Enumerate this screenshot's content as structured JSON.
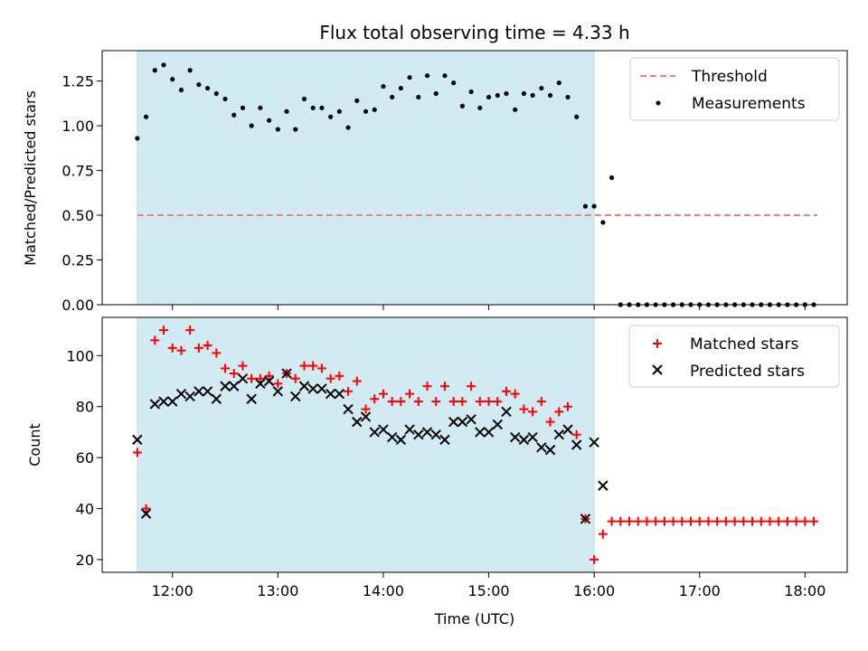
{
  "title": "Flux total observing time = 4.33 h",
  "chart_data": [
    {
      "type": "scatter",
      "ylabel": "Matched/Predicted stars",
      "ylim": [
        0,
        1.42
      ],
      "yticks": [
        "0.00",
        "0.25",
        "0.50",
        "0.75",
        "1.00",
        "1.25"
      ],
      "ytick_values": [
        0,
        0.25,
        0.5,
        0.75,
        1.0,
        1.25
      ],
      "xlim": [
        "11:20",
        "18:24"
      ],
      "x_tick_values": [
        "12:00",
        "13:00",
        "14:00",
        "15:00",
        "16:00",
        "17:00",
        "18:00"
      ],
      "shaded_region": {
        "x_start": "11:40",
        "x_end": "16:00",
        "color": "#add8e6"
      },
      "legend": "top-right",
      "grid": false,
      "series": [
        {
          "name": "Threshold",
          "style": "dashed-line",
          "color": "#f08080",
          "x": [
            "11:40",
            "18:07"
          ],
          "y": [
            0.5,
            0.5
          ]
        },
        {
          "name": "Measurements",
          "style": "dot",
          "color": "#000000",
          "x": [
            "11:40",
            "11:45",
            "11:50",
            "11:55",
            "12:00",
            "12:05",
            "12:10",
            "12:15",
            "12:20",
            "12:25",
            "12:30",
            "12:35",
            "12:40",
            "12:45",
            "12:50",
            "12:55",
            "13:00",
            "13:05",
            "13:10",
            "13:15",
            "13:20",
            "13:25",
            "13:30",
            "13:35",
            "13:40",
            "13:45",
            "13:50",
            "13:55",
            "14:00",
            "14:05",
            "14:10",
            "14:15",
            "14:20",
            "14:25",
            "14:30",
            "14:35",
            "14:40",
            "14:45",
            "14:50",
            "14:55",
            "15:00",
            "15:05",
            "15:10",
            "15:15",
            "15:20",
            "15:25",
            "15:30",
            "15:35",
            "15:40",
            "15:45",
            "15:50",
            "15:55",
            "16:00",
            "16:05",
            "16:10",
            "16:15",
            "16:20",
            "16:25",
            "16:30",
            "16:35",
            "16:40",
            "16:45",
            "16:50",
            "16:55",
            "17:00",
            "17:05",
            "17:10",
            "17:15",
            "17:20",
            "17:25",
            "17:30",
            "17:35",
            "17:40",
            "17:45",
            "17:50",
            "17:55",
            "18:00",
            "18:05"
          ],
          "y": [
            0.93,
            1.05,
            1.31,
            1.34,
            1.26,
            1.2,
            1.31,
            1.23,
            1.21,
            1.18,
            1.15,
            1.06,
            1.1,
            1.0,
            1.1,
            1.03,
            0.98,
            1.08,
            0.98,
            1.15,
            1.1,
            1.1,
            1.05,
            1.08,
            0.99,
            1.14,
            1.08,
            1.09,
            1.22,
            1.16,
            1.21,
            1.27,
            1.16,
            1.28,
            1.18,
            1.28,
            1.24,
            1.11,
            1.19,
            1.1,
            1.16,
            1.17,
            1.18,
            1.09,
            1.18,
            1.17,
            1.21,
            1.17,
            1.24,
            1.16,
            1.05,
            0.55,
            0.55,
            0.46,
            0.71,
            0.0,
            0.0,
            0.0,
            0.0,
            0.0,
            0.0,
            0.0,
            0.0,
            0.0,
            0.0,
            0.0,
            0.0,
            0.0,
            0.0,
            0.0,
            0.0,
            0.0,
            0.0,
            0.0,
            0.0,
            0.0,
            0.0,
            0.0
          ]
        }
      ]
    },
    {
      "type": "scatter",
      "xlabel": "Time (UTC)",
      "ylabel": "Count",
      "ylim": [
        15,
        115
      ],
      "yticks": [
        "20",
        "40",
        "60",
        "80",
        "100"
      ],
      "ytick_values": [
        20,
        40,
        60,
        80,
        100
      ],
      "xlim": [
        "11:20",
        "18:24"
      ],
      "xticks": [
        "12:00",
        "13:00",
        "14:00",
        "15:00",
        "16:00",
        "17:00",
        "18:00"
      ],
      "x_tick_values": [
        "12:00",
        "13:00",
        "14:00",
        "15:00",
        "16:00",
        "17:00",
        "18:00"
      ],
      "shaded_region": {
        "x_start": "11:40",
        "x_end": "16:00",
        "color": "#add8e6"
      },
      "legend": "top-right",
      "grid": false,
      "series": [
        {
          "name": "Matched stars",
          "style": "plus",
          "color": "#ff0000",
          "x": [
            "11:40",
            "11:45",
            "11:50",
            "11:55",
            "12:00",
            "12:05",
            "12:10",
            "12:15",
            "12:20",
            "12:25",
            "12:30",
            "12:35",
            "12:40",
            "12:45",
            "12:50",
            "12:55",
            "13:00",
            "13:05",
            "13:10",
            "13:15",
            "13:20",
            "13:25",
            "13:30",
            "13:35",
            "13:40",
            "13:45",
            "13:50",
            "13:55",
            "14:00",
            "14:05",
            "14:10",
            "14:15",
            "14:20",
            "14:25",
            "14:30",
            "14:35",
            "14:40",
            "14:45",
            "14:50",
            "14:55",
            "15:00",
            "15:05",
            "15:10",
            "15:15",
            "15:20",
            "15:25",
            "15:30",
            "15:35",
            "15:40",
            "15:45",
            "15:50",
            "15:55",
            "16:00",
            "16:05",
            "16:10",
            "16:15",
            "16:20",
            "16:25",
            "16:30",
            "16:35",
            "16:40",
            "16:45",
            "16:50",
            "16:55",
            "17:00",
            "17:05",
            "17:10",
            "17:15",
            "17:20",
            "17:25",
            "17:30",
            "17:35",
            "17:40",
            "17:45",
            "17:50",
            "17:55",
            "18:00",
            "18:05"
          ],
          "y": [
            62,
            40,
            106,
            110,
            103,
            102,
            110,
            103,
            104,
            101,
            95,
            93,
            96,
            91,
            91,
            92,
            89,
            93,
            91,
            96,
            96,
            95,
            91,
            92,
            86,
            90,
            79,
            83,
            85,
            82,
            82,
            85,
            82,
            88,
            82,
            88,
            82,
            82,
            88,
            82,
            82,
            82,
            86,
            85,
            79,
            78,
            82,
            74,
            78,
            80,
            69,
            36,
            20,
            30,
            35,
            35,
            35,
            35,
            35,
            35,
            35,
            35,
            35,
            35,
            35,
            35,
            35,
            35,
            35,
            35,
            35,
            35,
            35,
            35,
            35,
            35,
            35,
            35
          ]
        },
        {
          "name": "Predicted stars",
          "style": "x",
          "color": "#000000",
          "x": [
            "11:40",
            "11:45",
            "11:50",
            "11:55",
            "12:00",
            "12:05",
            "12:10",
            "12:15",
            "12:20",
            "12:25",
            "12:30",
            "12:35",
            "12:40",
            "12:45",
            "12:50",
            "12:55",
            "13:00",
            "13:05",
            "13:10",
            "13:15",
            "13:20",
            "13:25",
            "13:30",
            "13:35",
            "13:40",
            "13:45",
            "13:50",
            "13:55",
            "14:00",
            "14:05",
            "14:10",
            "14:15",
            "14:20",
            "14:25",
            "14:30",
            "14:35",
            "14:40",
            "14:45",
            "14:50",
            "14:55",
            "15:00",
            "15:05",
            "15:10",
            "15:15",
            "15:20",
            "15:25",
            "15:30",
            "15:35",
            "15:40",
            "15:45",
            "15:50",
            "15:55",
            "16:00",
            "16:05",
            "16:10"
          ],
          "y": [
            67,
            38,
            81,
            82,
            82,
            85,
            84,
            86,
            86,
            83,
            88,
            88,
            91,
            83,
            89,
            90,
            86,
            93,
            84,
            88,
            87,
            87,
            85,
            85,
            79,
            74,
            76,
            70,
            71,
            68,
            67,
            71,
            69,
            70,
            69,
            67,
            74,
            74,
            75,
            70,
            70,
            73,
            78,
            68,
            67,
            68,
            64,
            63,
            69,
            71,
            65,
            36,
            66,
            49,
            null
          ]
        }
      ]
    }
  ]
}
